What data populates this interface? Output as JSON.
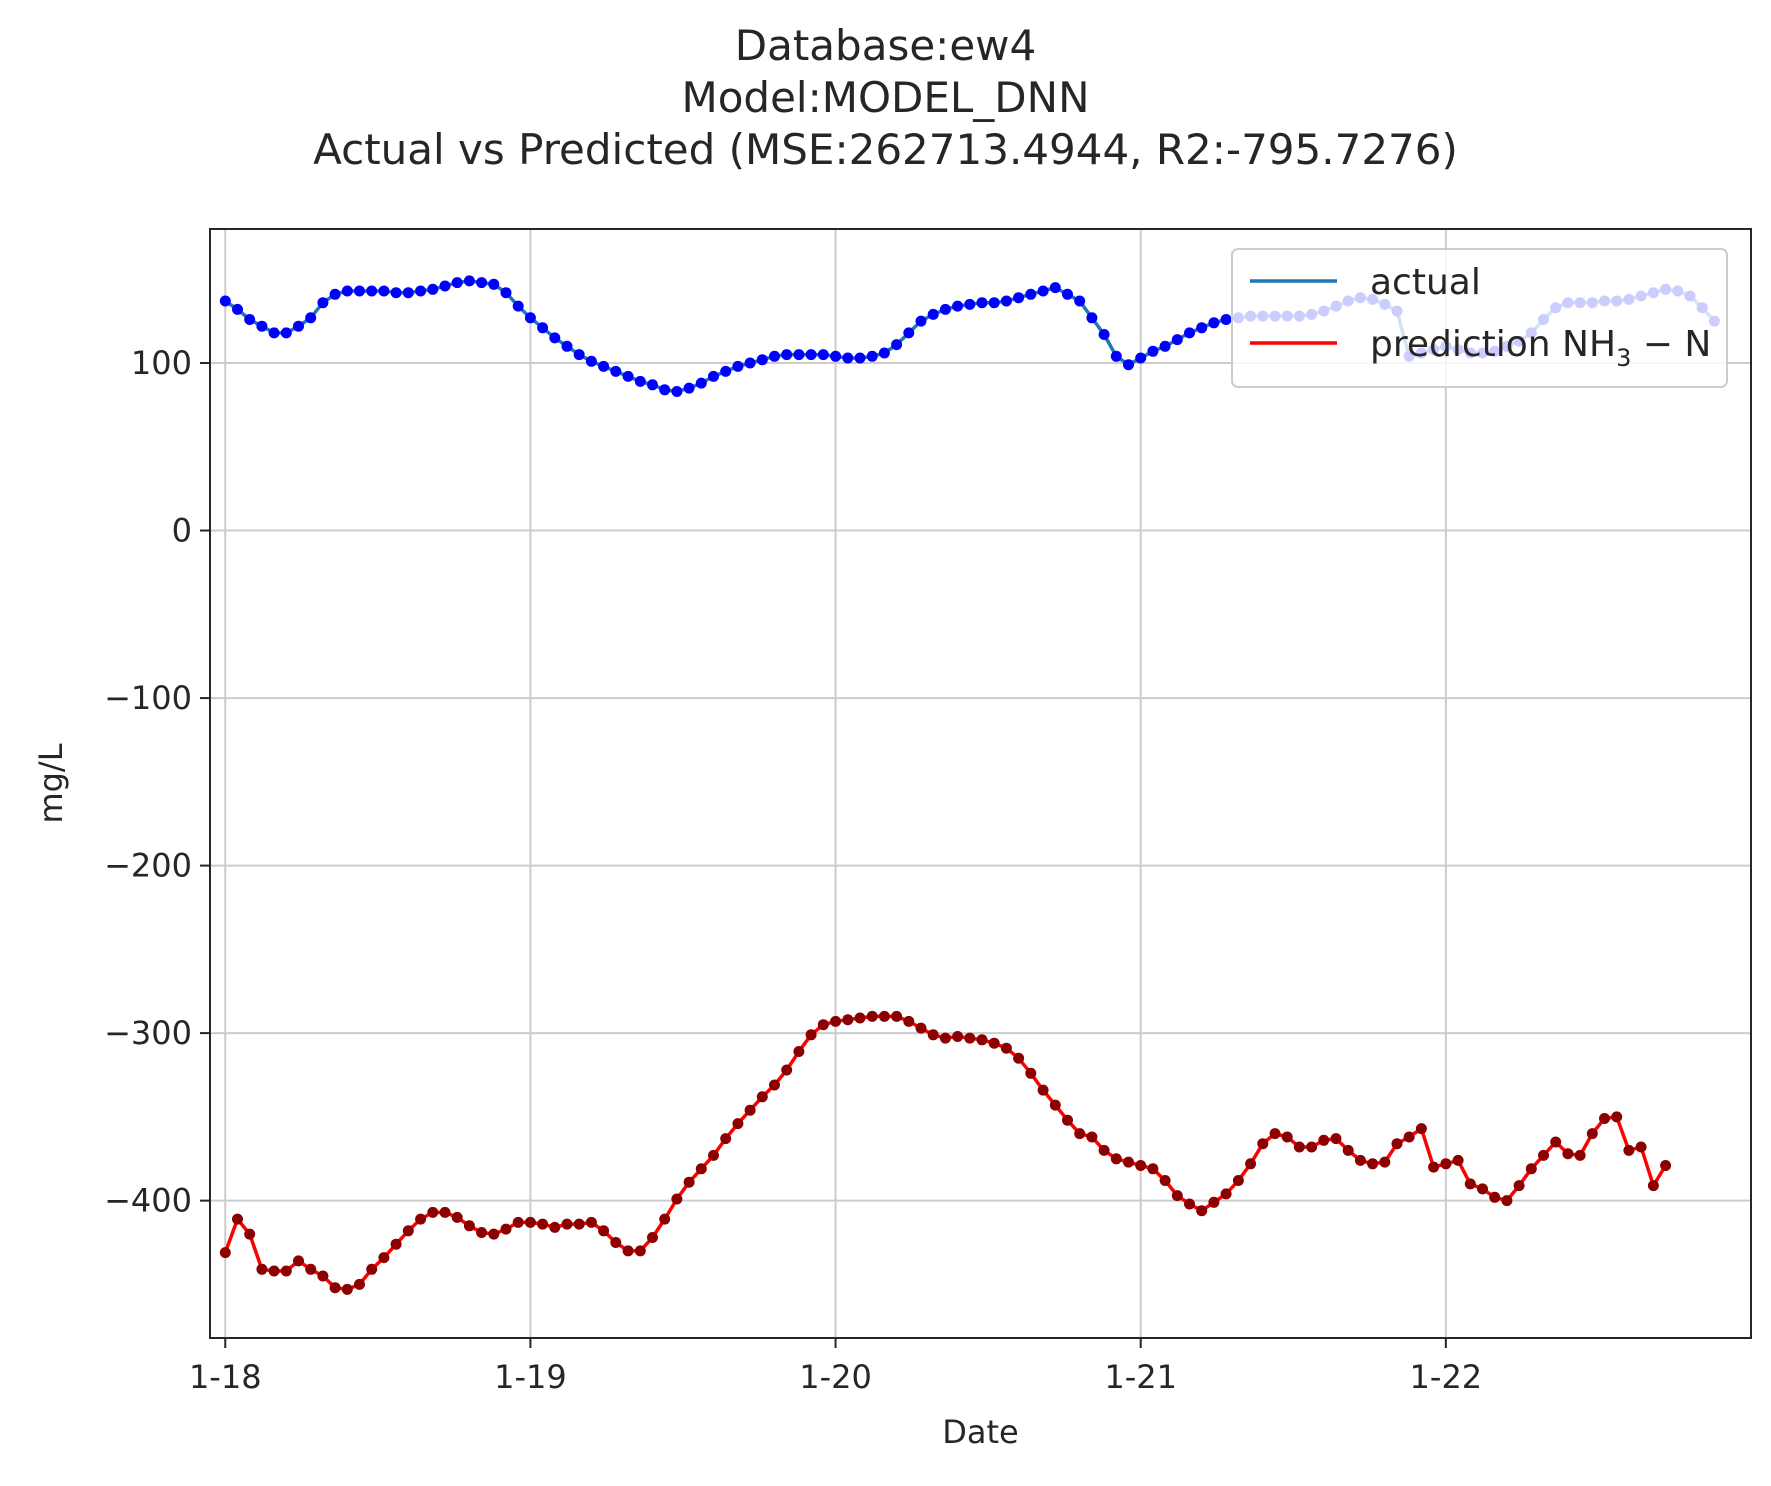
{
  "titles": [
    "Database:ew4",
    "Model:MODEL_DNN",
    "Actual vs Predicted (MSE:262713.4944, R2:-795.7276)"
  ],
  "chart_data": {
    "type": "line",
    "title": "Database:ew4 / Model:MODEL_DNN / Actual vs Predicted (MSE:262713.4944, R2:-795.7276)",
    "xlabel": "Date",
    "ylabel": "mg/L",
    "xlim": [
      -0.05,
      5.0
    ],
    "ylim": [
      -482,
      180
    ],
    "x_ticks": [
      0,
      1,
      2,
      3,
      4
    ],
    "x_tick_labels": [
      "1-18",
      "1-19",
      "1-20",
      "1-21",
      "1-22"
    ],
    "y_ticks": [
      100,
      0,
      -100,
      -200,
      -300,
      -400
    ],
    "y_tick_labels": [
      "100",
      "0",
      "−100",
      "−200",
      "−300",
      "−400"
    ],
    "grid": true,
    "legend_position": "top-right",
    "series": [
      {
        "name": "actual",
        "legend_color": "#1f77b4",
        "line_color": "#1f77b4",
        "marker_color": "#0000ff",
        "x_step_days": 0.04,
        "values": [
          137,
          132,
          126,
          122,
          118,
          118,
          122,
          127,
          136,
          141,
          143,
          143,
          143,
          143,
          142,
          142,
          143,
          144,
          146,
          148,
          149,
          148,
          147,
          142,
          134,
          127,
          121,
          115,
          110,
          105,
          101,
          98,
          95,
          92,
          89,
          87,
          84,
          83,
          85,
          88,
          92,
          95,
          98,
          100,
          102,
          104,
          105,
          105,
          105,
          105,
          104,
          103,
          103,
          104,
          106,
          111,
          118,
          125,
          129,
          132,
          134,
          135,
          136,
          136,
          137,
          139,
          141,
          143,
          145,
          141,
          137,
          127,
          117,
          104,
          99,
          103,
          107,
          110,
          114,
          118,
          121,
          124,
          126,
          127,
          128,
          128,
          128,
          128,
          128,
          129,
          131,
          134,
          137,
          139,
          138,
          135,
          131,
          104,
          106,
          108,
          110,
          108,
          106,
          106,
          107,
          110,
          113,
          118,
          126,
          133,
          136,
          136,
          136,
          137,
          137,
          138,
          140,
          142,
          144,
          143,
          140,
          133,
          125
        ]
      },
      {
        "name": "prediction NH3 - N",
        "legend_color": "#ff0000",
        "line_color": "#ff0000",
        "marker_color": "#8b0000",
        "x_step_days": 0.04,
        "values": [
          -431,
          -411,
          -420,
          -441,
          -442,
          -442,
          -436,
          -441,
          -445,
          -452,
          -453,
          -450,
          -441,
          -434,
          -426,
          -418,
          -411,
          -407,
          -407,
          -410,
          -415,
          -419,
          -420,
          -417,
          -413,
          -413,
          -414,
          -416,
          -414,
          -414,
          -413,
          -418,
          -425,
          -430,
          -430,
          -422,
          -411,
          -399,
          -389,
          -381,
          -373,
          -363,
          -354,
          -346,
          -338,
          -331,
          -322,
          -311,
          -301,
          -295,
          -293,
          -292,
          -291,
          -290,
          -290,
          -290,
          -293,
          -297,
          -301,
          -303,
          -302,
          -303,
          -304,
          -306,
          -309,
          -315,
          -324,
          -334,
          -343,
          -352,
          -360,
          -362,
          -370,
          -375,
          -377,
          -379,
          -381,
          -388,
          -397,
          -402,
          -406,
          -401,
          -396,
          -388,
          -378,
          -366,
          -360,
          -362,
          -368,
          -368,
          -364,
          -363,
          -370,
          -376,
          -378,
          -377,
          -366,
          -362,
          -357,
          -380,
          -378,
          -376,
          -390,
          -393,
          -398,
          -400,
          -391,
          -381,
          -373,
          -365,
          -372,
          -373,
          -360,
          -351,
          -350,
          -370,
          -368,
          -391,
          -379
        ]
      }
    ]
  },
  "legend": {
    "actual_label": "actual",
    "prediction_label_base": "prediction NH",
    "prediction_label_sub": "3",
    "prediction_label_tail": " − N"
  },
  "axes": {
    "xlabel": "Date",
    "ylabel": "mg/L"
  }
}
